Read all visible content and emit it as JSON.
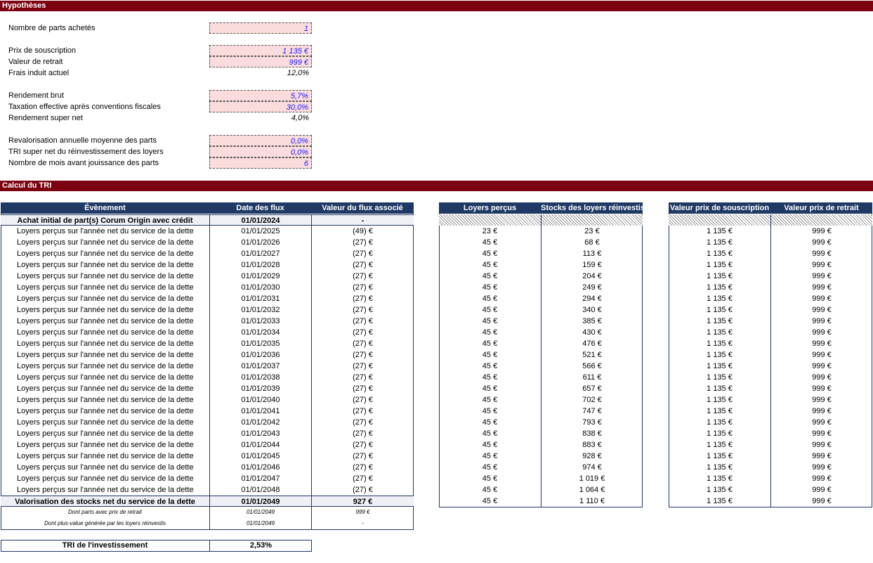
{
  "sections": {
    "hypotheses": "Hypothèses",
    "calcul": "Calcul du TRI"
  },
  "hypotheses": [
    {
      "label": "Nombre de parts achetés",
      "value": "1",
      "input": true
    },
    {
      "label": "Prix de souscription",
      "value": "1 135 €",
      "input": true
    },
    {
      "label": "Valeur de retrait",
      "value": "999 €",
      "input": true
    },
    {
      "label": "Frais induit actuel",
      "value": "12,0%",
      "input": false
    },
    {
      "label": "Rendement brut",
      "value": "5,7%",
      "input": true
    },
    {
      "label": "Taxation effective après conventions fiscales",
      "value": "30,0%",
      "input": true
    },
    {
      "label": "Rendement super net",
      "value": "4,0%",
      "input": false
    },
    {
      "label": "Revalorisation annuelle moyenne des parts",
      "value": "0,0%",
      "input": true
    },
    {
      "label": "TRI super net du réinvestissement des loyers",
      "value": "0,0%",
      "input": true
    },
    {
      "label": "Nombre de mois avant jouissance des parts",
      "value": "6",
      "input": true
    }
  ],
  "tri_table": {
    "headers": [
      "Évènement",
      "Date des flux",
      "Valeur du flux associé"
    ],
    "rows": [
      [
        "Achat initial de part(s) Corum Origin avec crédit",
        "01/01/2024",
        "-"
      ],
      [
        "Loyers perçus sur l'année net du service de la dette",
        "01/01/2025",
        "(49) €"
      ],
      [
        "Loyers perçus sur l'année net du service de la dette",
        "01/01/2026",
        "(27) €"
      ],
      [
        "Loyers perçus sur l'année net du service de la dette",
        "01/01/2027",
        "(27) €"
      ],
      [
        "Loyers perçus sur l'année net du service de la dette",
        "01/01/2028",
        "(27) €"
      ],
      [
        "Loyers perçus sur l'année net du service de la dette",
        "01/01/2029",
        "(27) €"
      ],
      [
        "Loyers perçus sur l'année net du service de la dette",
        "01/01/2030",
        "(27) €"
      ],
      [
        "Loyers perçus sur l'année net du service de la dette",
        "01/01/2031",
        "(27) €"
      ],
      [
        "Loyers perçus sur l'année net du service de la dette",
        "01/01/2032",
        "(27) €"
      ],
      [
        "Loyers perçus sur l'année net du service de la dette",
        "01/01/2033",
        "(27) €"
      ],
      [
        "Loyers perçus sur l'année net du service de la dette",
        "01/01/2034",
        "(27) €"
      ],
      [
        "Loyers perçus sur l'année net du service de la dette",
        "01/01/2035",
        "(27) €"
      ],
      [
        "Loyers perçus sur l'année net du service de la dette",
        "01/01/2036",
        "(27) €"
      ],
      [
        "Loyers perçus sur l'année net du service de la dette",
        "01/01/2037",
        "(27) €"
      ],
      [
        "Loyers perçus sur l'année net du service de la dette",
        "01/01/2038",
        "(27) €"
      ],
      [
        "Loyers perçus sur l'année net du service de la dette",
        "01/01/2039",
        "(27) €"
      ],
      [
        "Loyers perçus sur l'année net du service de la dette",
        "01/01/2040",
        "(27) €"
      ],
      [
        "Loyers perçus sur l'année net du service de la dette",
        "01/01/2041",
        "(27) €"
      ],
      [
        "Loyers perçus sur l'année net du service de la dette",
        "01/01/2042",
        "(27) €"
      ],
      [
        "Loyers perçus sur l'année net du service de la dette",
        "01/01/2043",
        "(27) €"
      ],
      [
        "Loyers perçus sur l'année net du service de la dette",
        "01/01/2044",
        "(27) €"
      ],
      [
        "Loyers perçus sur l'année net du service de la dette",
        "01/01/2045",
        "(27) €"
      ],
      [
        "Loyers perçus sur l'année net du service de la dette",
        "01/01/2046",
        "(27) €"
      ],
      [
        "Loyers perçus sur l'année net du service de la dette",
        "01/01/2047",
        "(27) €"
      ],
      [
        "Loyers perçus sur l'année net du service de la dette",
        "01/01/2048",
        "(27) €"
      ],
      [
        "Valorisation des stocks net du service de la dette",
        "01/01/2049",
        "927 €"
      ],
      [
        "Dont parts avec prix de retrait",
        "01/01/2049",
        "999 €"
      ],
      [
        "Dont plus-value générée par les loyers réinvestis",
        "01/01/2049",
        "-"
      ]
    ]
  },
  "loyers_table": {
    "headers": [
      "Loyers perçus",
      "Stocks des loyers réinvestis"
    ],
    "rows": [
      [
        "23 €",
        "23 €"
      ],
      [
        "45 €",
        "68 €"
      ],
      [
        "45 €",
        "113 €"
      ],
      [
        "45 €",
        "159 €"
      ],
      [
        "45 €",
        "204 €"
      ],
      [
        "45 €",
        "249 €"
      ],
      [
        "45 €",
        "294 €"
      ],
      [
        "45 €",
        "340 €"
      ],
      [
        "45 €",
        "385 €"
      ],
      [
        "45 €",
        "430 €"
      ],
      [
        "45 €",
        "476 €"
      ],
      [
        "45 €",
        "521 €"
      ],
      [
        "45 €",
        "566 €"
      ],
      [
        "45 €",
        "611 €"
      ],
      [
        "45 €",
        "657 €"
      ],
      [
        "45 €",
        "702 €"
      ],
      [
        "45 €",
        "747 €"
      ],
      [
        "45 €",
        "793 €"
      ],
      [
        "45 €",
        "838 €"
      ],
      [
        "45 €",
        "883 €"
      ],
      [
        "45 €",
        "928 €"
      ],
      [
        "45 €",
        "974 €"
      ],
      [
        "45 €",
        "1 019 €"
      ],
      [
        "45 €",
        "1 064 €"
      ],
      [
        "45 €",
        "1 110 €"
      ]
    ]
  },
  "prix_table": {
    "headers": [
      "Valeur prix de souscription",
      "Valeur prix de retrait"
    ],
    "rows": [
      [
        "1 135 €",
        "999 €"
      ],
      [
        "1 135 €",
        "999 €"
      ],
      [
        "1 135 €",
        "999 €"
      ],
      [
        "1 135 €",
        "999 €"
      ],
      [
        "1 135 €",
        "999 €"
      ],
      [
        "1 135 €",
        "999 €"
      ],
      [
        "1 135 €",
        "999 €"
      ],
      [
        "1 135 €",
        "999 €"
      ],
      [
        "1 135 €",
        "999 €"
      ],
      [
        "1 135 €",
        "999 €"
      ],
      [
        "1 135 €",
        "999 €"
      ],
      [
        "1 135 €",
        "999 €"
      ],
      [
        "1 135 €",
        "999 €"
      ],
      [
        "1 135 €",
        "999 €"
      ],
      [
        "1 135 €",
        "999 €"
      ],
      [
        "1 135 €",
        "999 €"
      ],
      [
        "1 135 €",
        "999 €"
      ],
      [
        "1 135 €",
        "999 €"
      ],
      [
        "1 135 €",
        "999 €"
      ],
      [
        "1 135 €",
        "999 €"
      ],
      [
        "1 135 €",
        "999 €"
      ],
      [
        "1 135 €",
        "999 €"
      ],
      [
        "1 135 €",
        "999 €"
      ],
      [
        "1 135 €",
        "999 €"
      ],
      [
        "1 135 €",
        "999 €"
      ]
    ]
  },
  "tri_result": {
    "label": "TRI de l'investissement",
    "value": "2,53%"
  }
}
